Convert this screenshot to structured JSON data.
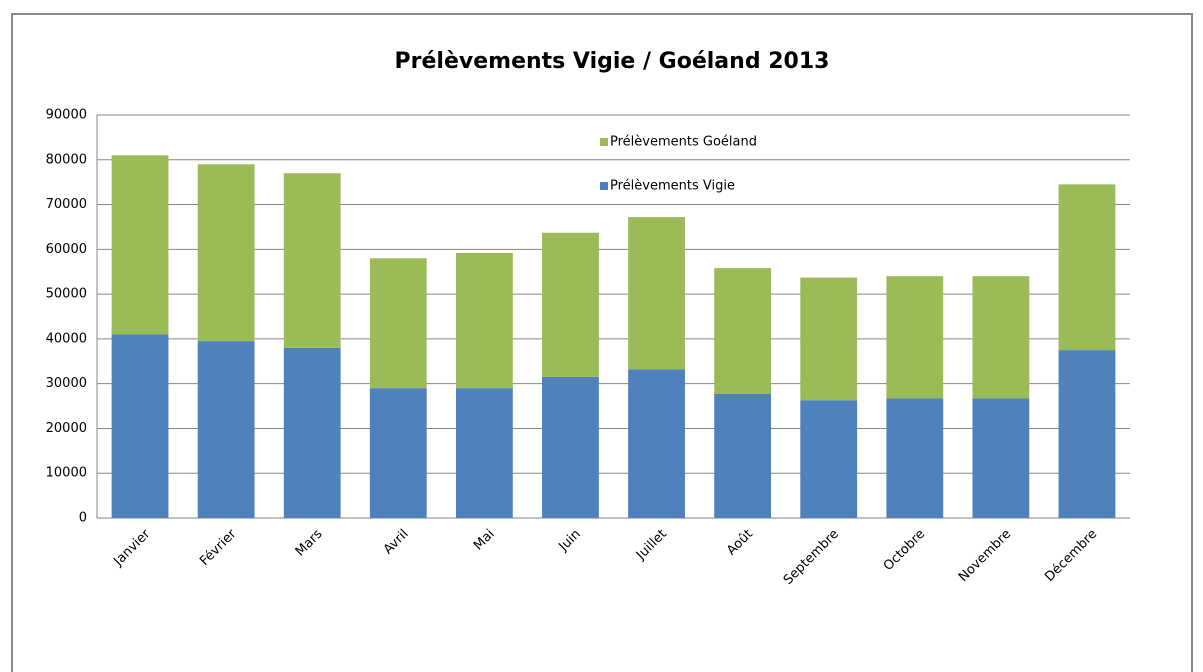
{
  "chart_data": {
    "type": "stacked_bar",
    "title": "Prélèvements Vigie / Goéland 2013",
    "categories": [
      "Janvier",
      "Février",
      "Mars",
      "Avril",
      "Mai",
      "Juin",
      "Juillet",
      "Août",
      "Septembre",
      "Octobre",
      "Novembre",
      "Décembre"
    ],
    "series": [
      {
        "name": "Prélèvements Vigie",
        "color": "#4f81bd",
        "values": [
          41000,
          39500,
          38000,
          29000,
          29000,
          31500,
          33200,
          27700,
          26300,
          26700,
          26700,
          37500
        ]
      },
      {
        "name": "Prélèvements Goéland",
        "color": "#9bbb59",
        "values": [
          40000,
          39500,
          39000,
          29000,
          30200,
          32200,
          34000,
          28100,
          27400,
          27300,
          27300,
          37000
        ]
      }
    ],
    "ylim": [
      0,
      90000
    ],
    "yticks": [
      0,
      10000,
      20000,
      30000,
      40000,
      50000,
      60000,
      70000,
      80000,
      90000
    ],
    "grid": true,
    "legend": "top"
  }
}
